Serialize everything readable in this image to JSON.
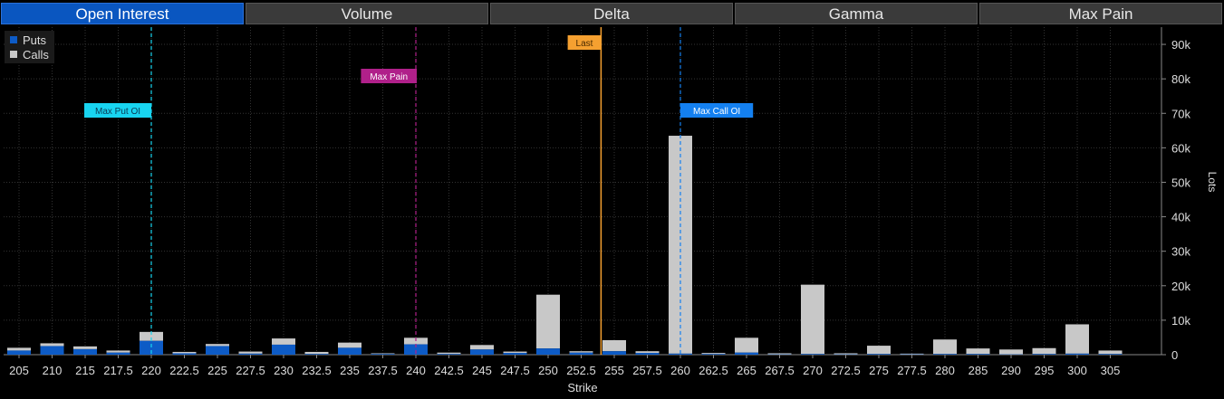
{
  "tabs": [
    {
      "label": "Open Interest",
      "active": true
    },
    {
      "label": "Volume",
      "active": false
    },
    {
      "label": "Delta",
      "active": false
    },
    {
      "label": "Gamma",
      "active": false
    },
    {
      "label": "Max Pain",
      "active": false
    }
  ],
  "colors": {
    "puts": "#0d5bc6",
    "calls": "#c8c8c8",
    "max_put": "#18d4f0",
    "max_pain": "#b0208a",
    "last": "#f5a030",
    "max_call": "#1480f0"
  },
  "chart_data": {
    "type": "bar",
    "stacked": true,
    "xlabel": "Strike",
    "ylabel": "Lots",
    "ylim": [
      0,
      95000
    ],
    "yticks": [
      0,
      10000,
      20000,
      30000,
      40000,
      50000,
      60000,
      70000,
      80000,
      90000
    ],
    "ytick_labels": [
      "0",
      "10k",
      "20k",
      "30k",
      "40k",
      "50k",
      "60k",
      "70k",
      "80k",
      "90k"
    ],
    "y_axis_side": "right",
    "grid": true,
    "legend_position": "top-left",
    "categories": [
      "205",
      "210",
      "215",
      "217.5",
      "220",
      "222.5",
      "225",
      "227.5",
      "230",
      "232.5",
      "235",
      "237.5",
      "240",
      "242.5",
      "245",
      "247.5",
      "250",
      "252.5",
      "255",
      "257.5",
      "260",
      "262.5",
      "265",
      "267.5",
      "270",
      "272.5",
      "275",
      "277.5",
      "280",
      "285",
      "290",
      "295",
      "300",
      "305"
    ],
    "series": [
      {
        "name": "Puts",
        "values": [
          1200,
          2500,
          1600,
          600,
          4000,
          400,
          2500,
          300,
          2900,
          200,
          2000,
          200,
          3000,
          200,
          1500,
          500,
          1800,
          600,
          1000,
          500,
          300,
          200,
          600,
          100,
          200,
          100,
          200,
          100,
          200,
          200,
          100,
          200,
          300,
          200
        ]
      },
      {
        "name": "Calls",
        "values": [
          800,
          800,
          800,
          600,
          2600,
          400,
          600,
          600,
          1800,
          600,
          1500,
          200,
          1900,
          400,
          1300,
          400,
          15600,
          400,
          3200,
          500,
          63200,
          300,
          4300,
          300,
          20100,
          300,
          2400,
          200,
          4200,
          1600,
          1400,
          1700,
          8500,
          1000
        ]
      }
    ],
    "markers": [
      {
        "label": "Max Put OI",
        "strike": "220",
        "color": "#18d4f0",
        "text_color": "#0a3a55"
      },
      {
        "label": "Max Pain",
        "strike": "240",
        "color": "#b0208a",
        "text_color": "#ffffff"
      },
      {
        "label": "Last",
        "x": 254,
        "color": "#f5a030",
        "text_color": "#4a2a00"
      },
      {
        "label": "Max Call OI",
        "strike": "260",
        "color": "#1480f0",
        "text_color": "#ffffff"
      }
    ]
  }
}
